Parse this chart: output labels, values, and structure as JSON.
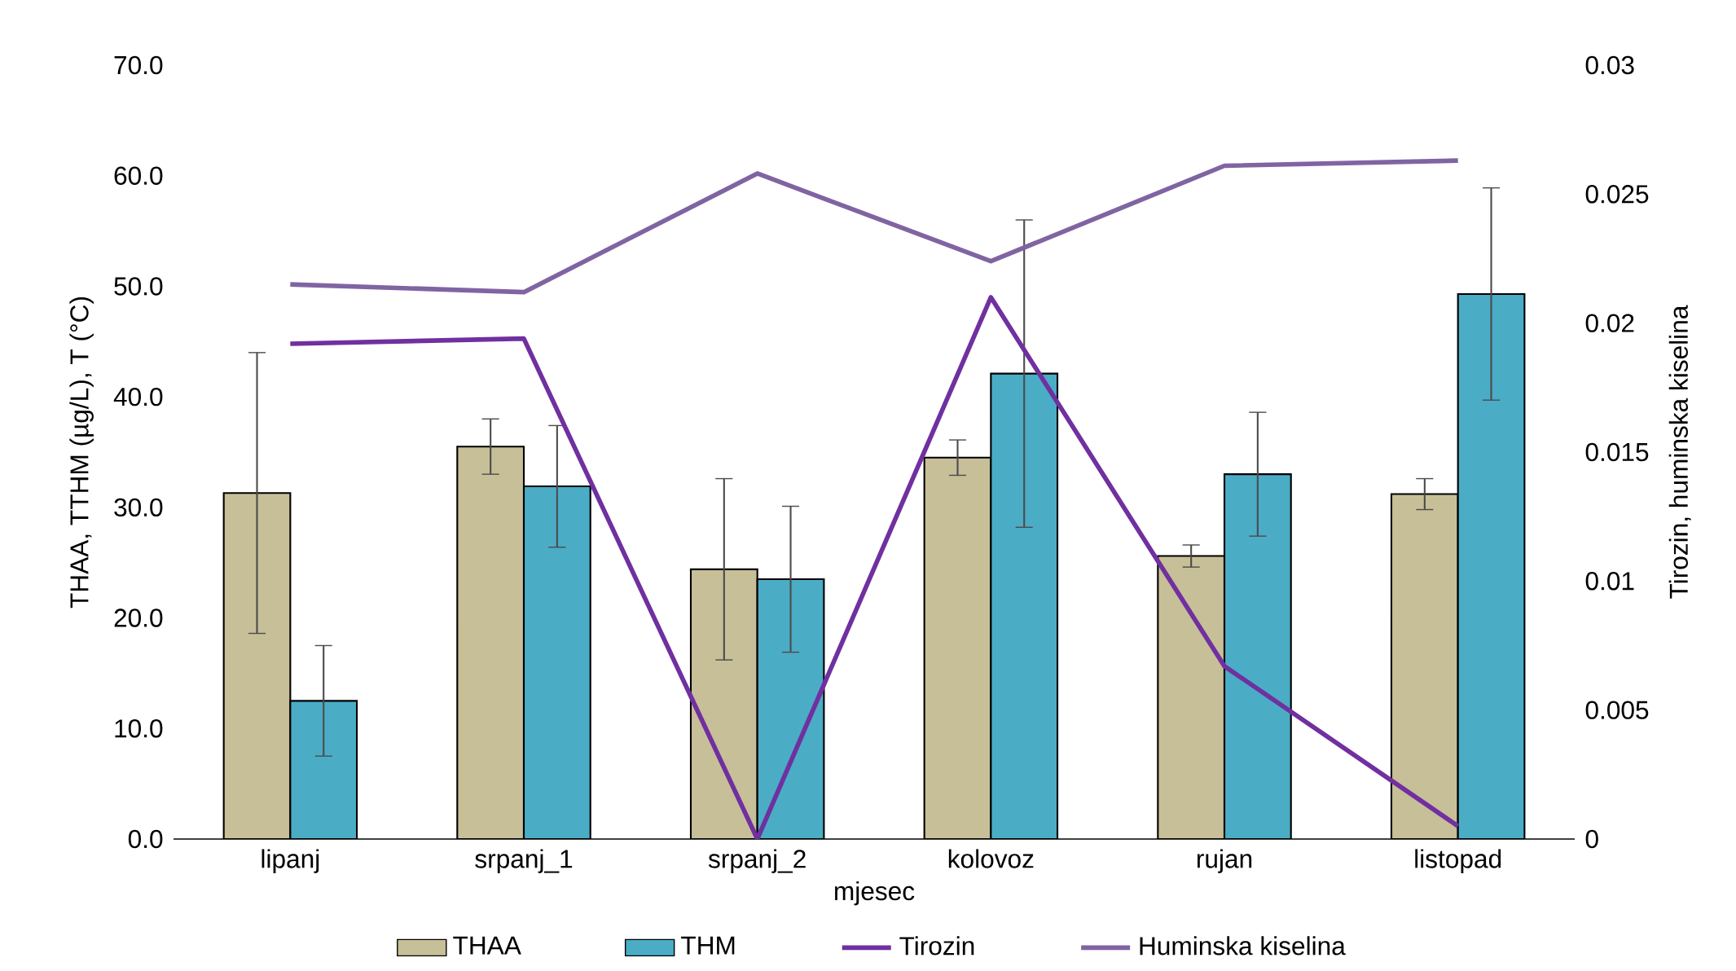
{
  "chart_data": {
    "type": "bar",
    "xlabel": "mjesec",
    "ylabel": "THAA, TTHM (µg/L), T (°C)",
    "y2label": "Tirozin, huminska kiselina",
    "categories": [
      "lipanj",
      "srpanj_1",
      "srpanj_2",
      "kolovoz",
      "rujan",
      "listopad"
    ],
    "series": [
      {
        "name": "THAA",
        "type": "bar",
        "color": "#c7bf98",
        "values": [
          31.3,
          35.5,
          24.4,
          34.5,
          25.6,
          31.2
        ],
        "errors": [
          12.7,
          2.5,
          8.2,
          1.6,
          1.0,
          1.4
        ]
      },
      {
        "name": "THM",
        "type": "bar",
        "color": "#4bacc6",
        "values": [
          12.5,
          31.9,
          23.5,
          42.1,
          33.0,
          49.3
        ],
        "errors": [
          5.0,
          5.5,
          6.6,
          13.9,
          5.6,
          9.6
        ]
      },
      {
        "name": "Tirozin",
        "type": "line",
        "axis": "y2",
        "color": "#7030a0",
        "values": [
          0.0192,
          0.0194,
          0.0,
          0.021,
          0.0067,
          0.0005
        ]
      },
      {
        "name": "Huminska kiselina",
        "type": "line",
        "axis": "y2",
        "color": "#8064a2",
        "values": [
          0.0215,
          0.0212,
          0.0258,
          0.0224,
          0.0261,
          0.0263
        ]
      }
    ],
    "ylim": [
      0,
      70
    ],
    "yticks": [
      {
        "value": 0,
        "label": "0.0"
      },
      {
        "value": 10,
        "label": "10.0"
      },
      {
        "value": 20,
        "label": "20.0"
      },
      {
        "value": 30,
        "label": "30.0"
      },
      {
        "value": 40,
        "label": "40.0"
      },
      {
        "value": 50,
        "label": "50.0"
      },
      {
        "value": 60,
        "label": "60.0"
      },
      {
        "value": 70,
        "label": "70.0"
      }
    ],
    "y2lim": [
      0,
      0.03
    ],
    "y2ticks": [
      0,
      0.005,
      0.01,
      0.015,
      0.02,
      0.025,
      0.03
    ],
    "legend": "bottom"
  }
}
